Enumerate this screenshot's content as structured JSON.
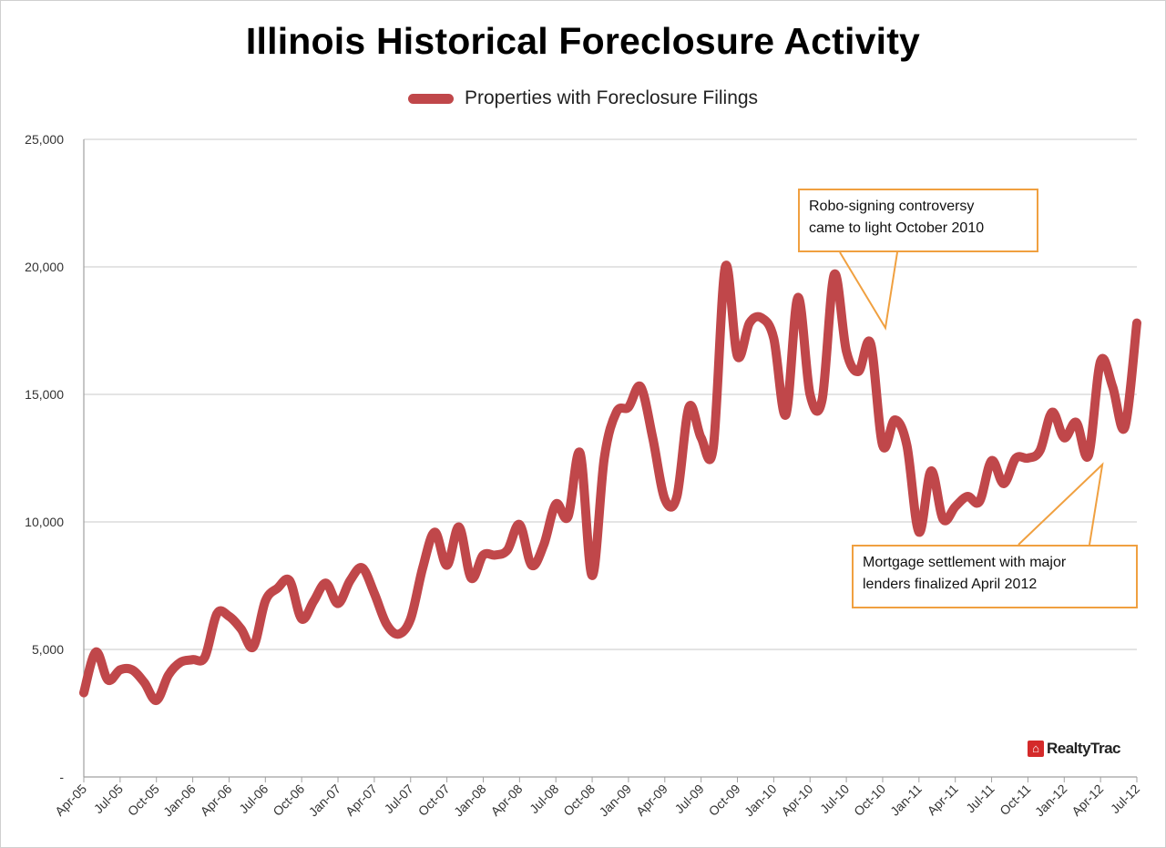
{
  "chart_data": {
    "type": "line",
    "title": "Illinois Historical Foreclosure Activity",
    "legend": {
      "label": "Properties with Foreclosure Filings",
      "position": "top-center"
    },
    "series_color": "#c0474a",
    "ylim": [
      0,
      25000
    ],
    "y_ticks": [
      {
        "value": 0,
        "label": "-"
      },
      {
        "value": 5000,
        "label": "5,000"
      },
      {
        "value": 10000,
        "label": "10,000"
      },
      {
        "value": 15000,
        "label": "15,000"
      },
      {
        "value": 20000,
        "label": "20,000"
      },
      {
        "value": 25000,
        "label": "25,000"
      }
    ],
    "x_tick_labels": [
      "Apr-05",
      "Jul-05",
      "Oct-05",
      "Jan-06",
      "Apr-06",
      "Jul-06",
      "Oct-06",
      "Jan-07",
      "Apr-07",
      "Jul-07",
      "Oct-07",
      "Jan-08",
      "Apr-08",
      "Jul-08",
      "Oct-08",
      "Jan-09",
      "Apr-09",
      "Jul-09",
      "Oct-09",
      "Jan-10",
      "Apr-10",
      "Jul-10",
      "Oct-10",
      "Jan-11",
      "Apr-11",
      "Jul-11",
      "Oct-11",
      "Jan-12",
      "Apr-12",
      "Jul-12"
    ],
    "series": [
      {
        "name": "Properties with Foreclosure Filings",
        "values": [
          3300,
          4900,
          3800,
          4200,
          4200,
          3700,
          3000,
          4000,
          4500,
          4600,
          4700,
          6400,
          6300,
          5800,
          5100,
          6900,
          7400,
          7700,
          6200,
          6900,
          7600,
          6800,
          7700,
          8200,
          7200,
          6000,
          5600,
          6200,
          8200,
          9600,
          8300,
          9800,
          7800,
          8700,
          8700,
          8900,
          9900,
          8300,
          9100,
          10700,
          10200,
          12700,
          7900,
          12500,
          14300,
          14500,
          15300,
          13300,
          10900,
          11000,
          14500,
          13300,
          12900,
          20000,
          16500,
          17800,
          18000,
          17200,
          14200,
          18800,
          15000,
          14800,
          19700,
          16700,
          15900,
          17000,
          13000,
          14000,
          13000,
          9600,
          12000,
          10100,
          10600,
          11000,
          10800,
          12400,
          11500,
          12500,
          12500,
          12800,
          14300,
          13300,
          13900,
          12600,
          16300,
          15300,
          13700,
          17800
        ]
      }
    ],
    "annotations": [
      {
        "id": "robo",
        "lines": [
          "Robo-signing controversy",
          "came to light October 2010"
        ],
        "points_to": "Oct-10"
      },
      {
        "id": "mortgage",
        "lines": [
          "Mortgage settlement with major",
          "lenders finalized April 2012"
        ],
        "points_to": "Apr-12"
      }
    ],
    "logo_text": "RealtyTrac"
  }
}
